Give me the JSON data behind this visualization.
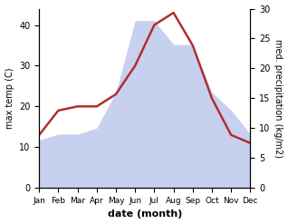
{
  "months": [
    "Jan",
    "Feb",
    "Mar",
    "Apr",
    "May",
    "Jun",
    "Jul",
    "Aug",
    "Sep",
    "Oct",
    "Nov",
    "Dec"
  ],
  "month_indices": [
    0,
    1,
    2,
    3,
    4,
    5,
    6,
    7,
    8,
    9,
    10,
    11
  ],
  "temperature": [
    13,
    19,
    20,
    20,
    23,
    30,
    40,
    43,
    35,
    22,
    13,
    11
  ],
  "precipitation": [
    8,
    9,
    9,
    10,
    16,
    28,
    28,
    24,
    24,
    16,
    13,
    9
  ],
  "temp_color": "#b03030",
  "precip_fill_color": "#c8d0f0",
  "left_ylim": [
    0,
    44
  ],
  "right_ylim": [
    0,
    30
  ],
  "left_yticks": [
    0,
    10,
    20,
    30,
    40
  ],
  "right_yticks": [
    0,
    5,
    10,
    15,
    20,
    25,
    30
  ],
  "xlabel": "date (month)",
  "ylabel_left": "max temp (C)",
  "ylabel_right": "med. precipitation (kg/m2)",
  "figsize": [
    3.18,
    2.47
  ],
  "dpi": 100
}
